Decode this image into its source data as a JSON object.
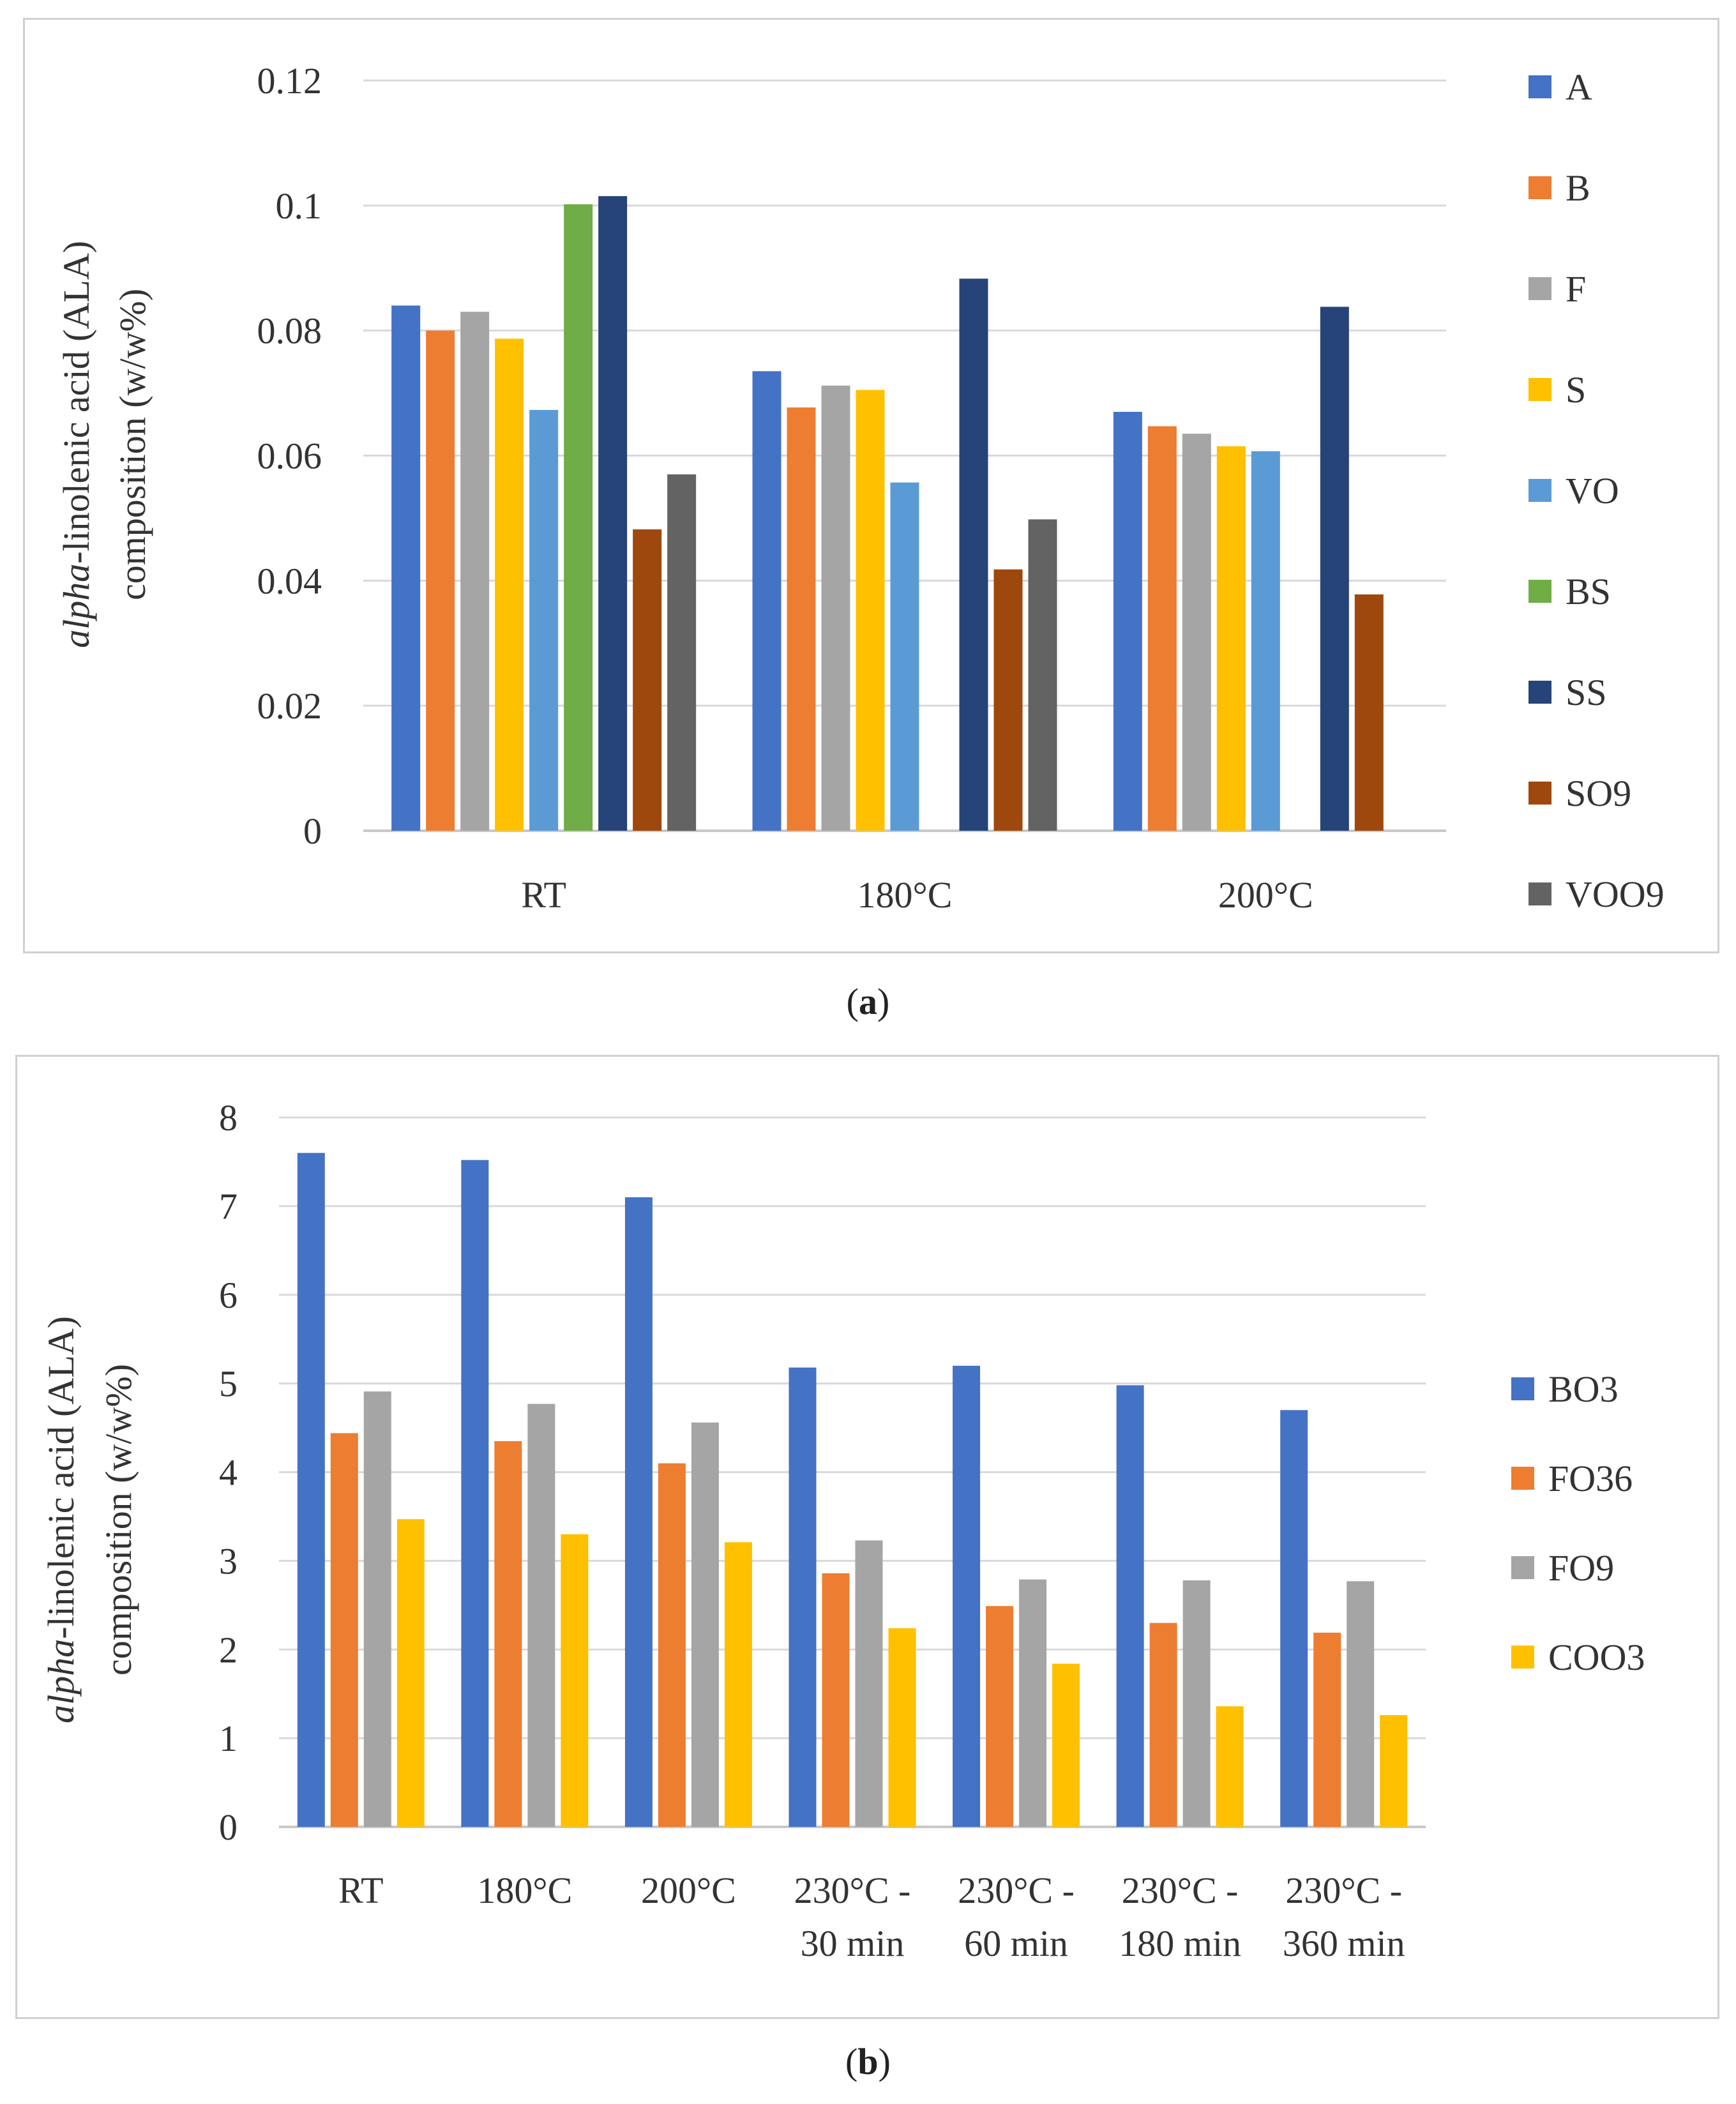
{
  "panels": [
    {
      "caption_letter": "a",
      "chart_data": {
        "type": "bar",
        "ylabel_italic": "alpha",
        "ylabel_rest_line1": "-linolenic acid (ALA)",
        "ylabel_line2": "composition (w/w%)",
        "ylim": [
          0,
          0.12
        ],
        "yticks": [
          0,
          0.02,
          0.04,
          0.06,
          0.08,
          0.1,
          0.12
        ],
        "ytick_labels": [
          "0",
          "0.02",
          "0.04",
          "0.06",
          "0.08",
          "0.1",
          "0.12"
        ],
        "grid": true,
        "legend_position": "right",
        "categories": [
          [
            "RT"
          ],
          [
            "180°C"
          ],
          [
            "200°C"
          ]
        ],
        "series": [
          {
            "name": "A",
            "color": "#4472C4",
            "values": [
              0.084,
              0.0735,
              0.067
            ]
          },
          {
            "name": "B",
            "color": "#ED7D31",
            "values": [
              0.08,
              0.0677,
              0.0647
            ]
          },
          {
            "name": "F",
            "color": "#A5A5A5",
            "values": [
              0.083,
              0.0712,
              0.0635
            ]
          },
          {
            "name": "S",
            "color": "#FFC000",
            "values": [
              0.0787,
              0.0705,
              0.0615
            ]
          },
          {
            "name": "VO",
            "color": "#5B9BD5",
            "values": [
              0.0673,
              0.0557,
              0.0607
            ]
          },
          {
            "name": "BS",
            "color": "#70AD47",
            "values": [
              0.1002,
              null,
              null
            ]
          },
          {
            "name": "SS",
            "color": "#264478",
            "values": [
              0.1015,
              0.0883,
              0.0838
            ]
          },
          {
            "name": "SO9",
            "color": "#9E480E",
            "values": [
              0.0482,
              0.0418,
              0.0378
            ]
          },
          {
            "name": "VOO9",
            "color": "#636363",
            "values": [
              0.057,
              0.0498,
              null
            ]
          }
        ]
      }
    },
    {
      "caption_letter": "b",
      "chart_data": {
        "type": "bar",
        "ylabel_italic": "alpha",
        "ylabel_rest_line1": "-linolenic acid (ALA)",
        "ylabel_line2": "composition (w/w%)",
        "ylim": [
          0,
          8
        ],
        "yticks": [
          0,
          1,
          2,
          3,
          4,
          5,
          6,
          7,
          8
        ],
        "ytick_labels": [
          "0",
          "1",
          "2",
          "3",
          "4",
          "5",
          "6",
          "7",
          "8"
        ],
        "grid": true,
        "legend_position": "right",
        "categories": [
          [
            "RT"
          ],
          [
            "180°C"
          ],
          [
            "200°C"
          ],
          [
            "230°C -",
            "30 min"
          ],
          [
            "230°C -",
            "60 min"
          ],
          [
            "230°C -",
            "180 min"
          ],
          [
            "230°C -",
            "360 min"
          ]
        ],
        "series": [
          {
            "name": "BO3",
            "color": "#4472C4",
            "values": [
              7.6,
              7.52,
              7.1,
              5.18,
              5.2,
              4.98,
              4.7
            ]
          },
          {
            "name": "FO36",
            "color": "#ED7D31",
            "values": [
              4.44,
              4.35,
              4.1,
              2.86,
              2.49,
              2.3,
              2.19
            ]
          },
          {
            "name": "FO9",
            "color": "#A5A5A5",
            "values": [
              4.91,
              4.77,
              4.56,
              3.23,
              2.79,
              2.78,
              2.77
            ]
          },
          {
            "name": "COO3",
            "color": "#FFC000",
            "values": [
              3.47,
              3.3,
              3.21,
              2.24,
              1.84,
              1.36,
              1.26
            ]
          }
        ]
      }
    }
  ]
}
